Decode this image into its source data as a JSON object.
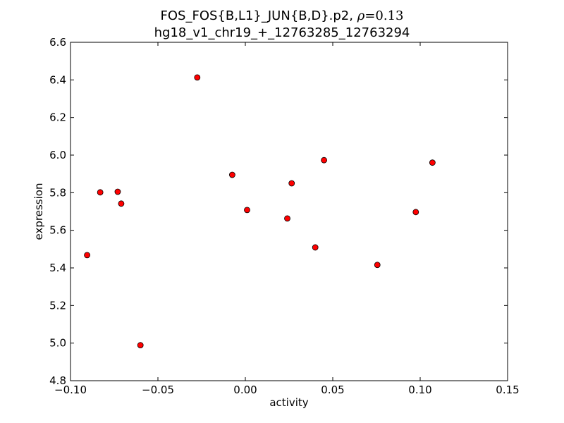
{
  "chart_data": {
    "type": "scatter",
    "title_line1": "FOS_FOS{B,L1}_JUN{B,D}.p2,",
    "title_rho_symbol": "ρ",
    "title_rho_value": "=0.13",
    "title_line2": "hg18_v1_chr19_+_12763285_12763294",
    "xlabel": "activity",
    "ylabel": "expression",
    "xlim": [
      -0.1,
      0.15
    ],
    "ylim": [
      4.8,
      6.6
    ],
    "xticks": [
      -0.1,
      -0.05,
      0.0,
      0.05,
      0.1,
      0.15
    ],
    "xtick_labels": [
      "−0.10",
      "−0.05",
      "0.00",
      "0.05",
      "0.10",
      "0.15"
    ],
    "yticks": [
      4.8,
      5.0,
      5.2,
      5.4,
      5.6,
      5.8,
      6.0,
      6.2,
      6.4,
      6.6
    ],
    "ytick_labels": [
      "4.8",
      "5.0",
      "5.2",
      "5.4",
      "5.6",
      "5.8",
      "6.0",
      "6.2",
      "6.4",
      "6.6"
    ],
    "grid": false,
    "marker_color": "#ff0000",
    "marker_edge_color": "#000000",
    "points": [
      {
        "x": -0.0905,
        "y": 5.468
      },
      {
        "x": -0.083,
        "y": 5.802
      },
      {
        "x": -0.073,
        "y": 5.805
      },
      {
        "x": -0.071,
        "y": 5.742
      },
      {
        "x": -0.06,
        "y": 4.989
      },
      {
        "x": -0.0275,
        "y": 6.413
      },
      {
        "x": -0.0075,
        "y": 5.895
      },
      {
        "x": 0.001,
        "y": 5.708
      },
      {
        "x": 0.024,
        "y": 5.663
      },
      {
        "x": 0.0265,
        "y": 5.85
      },
      {
        "x": 0.04,
        "y": 5.509
      },
      {
        "x": 0.045,
        "y": 5.973
      },
      {
        "x": 0.0755,
        "y": 5.416
      },
      {
        "x": 0.0975,
        "y": 5.697
      },
      {
        "x": 0.107,
        "y": 5.96
      }
    ]
  }
}
